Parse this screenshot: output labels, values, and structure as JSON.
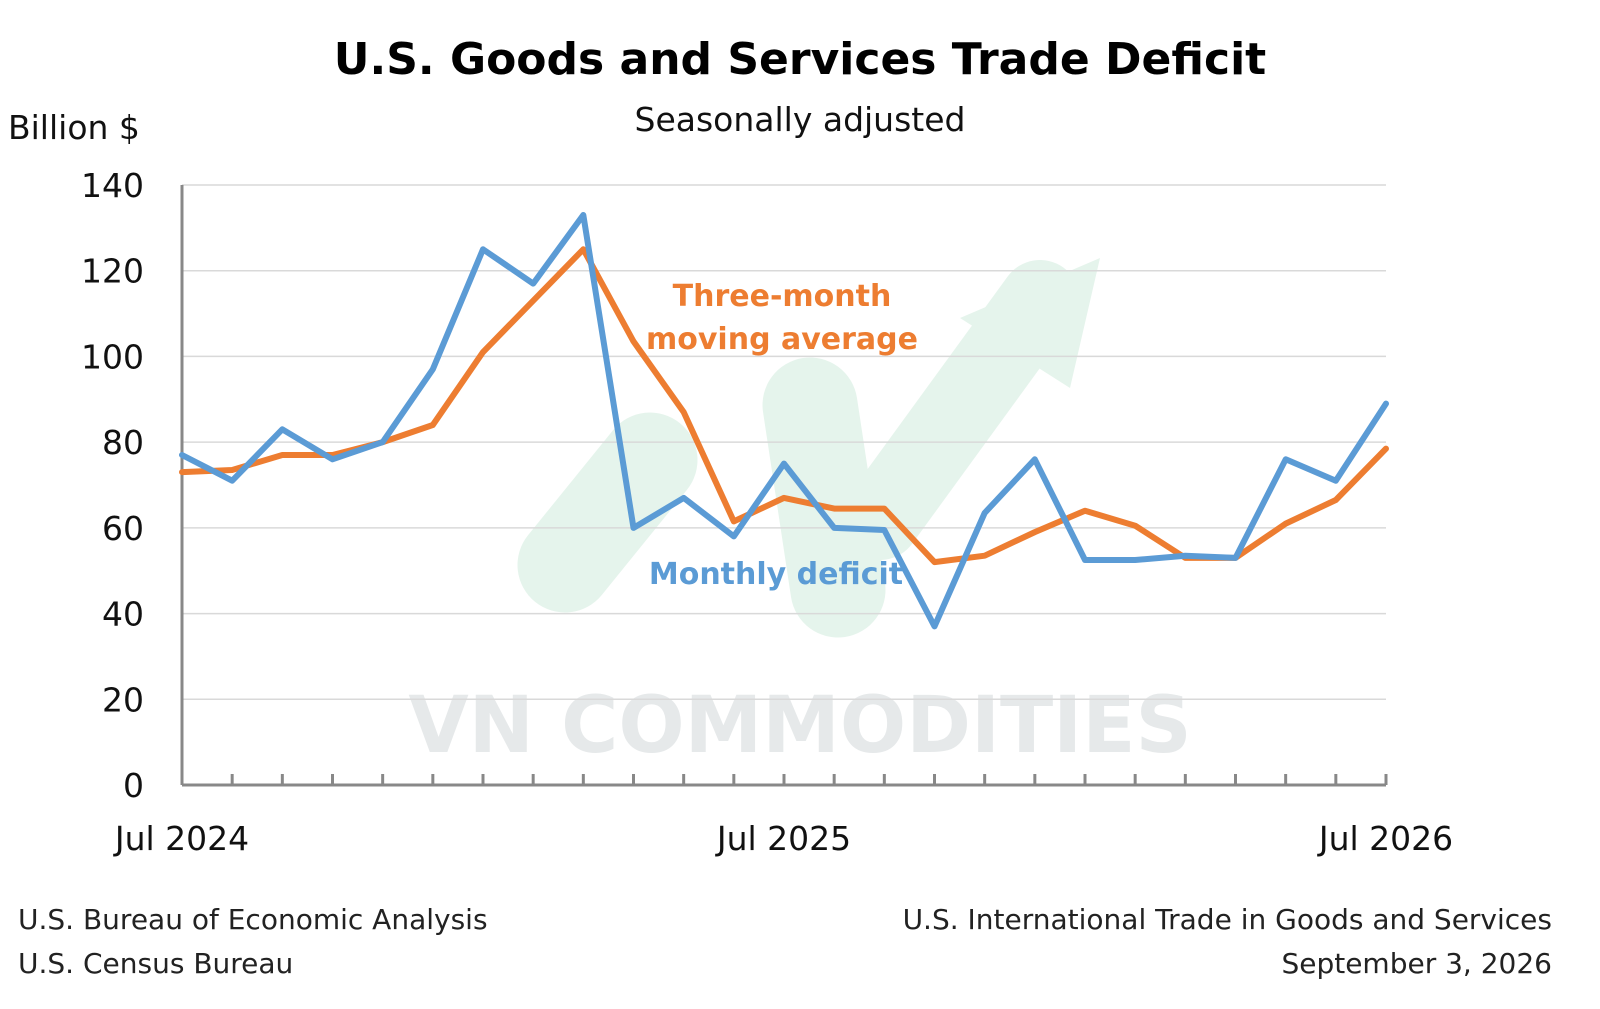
{
  "chart_data": {
    "type": "line",
    "title": "U.S. Goods and Services Trade Deficit",
    "subtitle": "Seasonally adjusted",
    "ylabel": "Billion $",
    "ylim": [
      0,
      140
    ],
    "yticks": [
      0,
      20,
      40,
      60,
      80,
      100,
      120,
      140
    ],
    "x_tick_labels": [
      "Jul 2024",
      "Jul 2025",
      "Jul 2026"
    ],
    "x_tick_label_positions": [
      0,
      12,
      24
    ],
    "grid": true,
    "x": [
      "Jul 2024",
      "Aug 2024",
      "Sep 2024",
      "Oct 2024",
      "Nov 2024",
      "Dec 2024",
      "Jan 2025",
      "Feb 2025",
      "Mar 2025",
      "Apr 2025",
      "May 2025",
      "Jun 2025",
      "Jul 2025",
      "Aug 2025",
      "Sep 2025",
      "Oct 2025",
      "Nov 2025",
      "Dec 2025",
      "Jan 2026",
      "Feb 2026",
      "Mar 2026",
      "Apr 2026",
      "May 2026",
      "Jun 2026",
      "Jul 2026"
    ],
    "series": [
      {
        "name": "Monthly deficit",
        "color": "#5b9bd5",
        "values": [
          77,
          71,
          83,
          76,
          80,
          97,
          125,
          117,
          133,
          60,
          67,
          58,
          75,
          60,
          59.5,
          37,
          63.5,
          76,
          52.5,
          52.5,
          53.5,
          53,
          76,
          71,
          89
        ]
      },
      {
        "name": "Three-month moving average",
        "color": "#ed7d31",
        "values": [
          73,
          73.5,
          77,
          77,
          80,
          84,
          101,
          113,
          125,
          103.5,
          87,
          61.5,
          67,
          64.5,
          64.5,
          52,
          53.5,
          59,
          64,
          60.5,
          53,
          53,
          61,
          66.5,
          78.5
        ]
      }
    ],
    "annotations": [
      {
        "text_lines": [
          "Three-month",
          "moving average"
        ],
        "series": "Three-month moving average",
        "color": "#ed7d31"
      },
      {
        "text_lines": [
          "Monthly deficit"
        ],
        "series": "Monthly deficit",
        "color": "#5b9bd5"
      }
    ]
  },
  "footer": {
    "left_line1": "U.S. Bureau of Economic Analysis",
    "left_line2": "U.S. Census Bureau",
    "right_line1": "U.S. International Trade in Goods and Services",
    "right_line2": "September 3, 2026"
  },
  "watermark": {
    "text": "VN COMMODITIES",
    "icon": "upward-arrow-logo"
  },
  "colors": {
    "axis": "#888888",
    "grid": "#d9d9d9",
    "watermark": "#e6e9ea",
    "watermark_logo": "#e3f3ea"
  }
}
